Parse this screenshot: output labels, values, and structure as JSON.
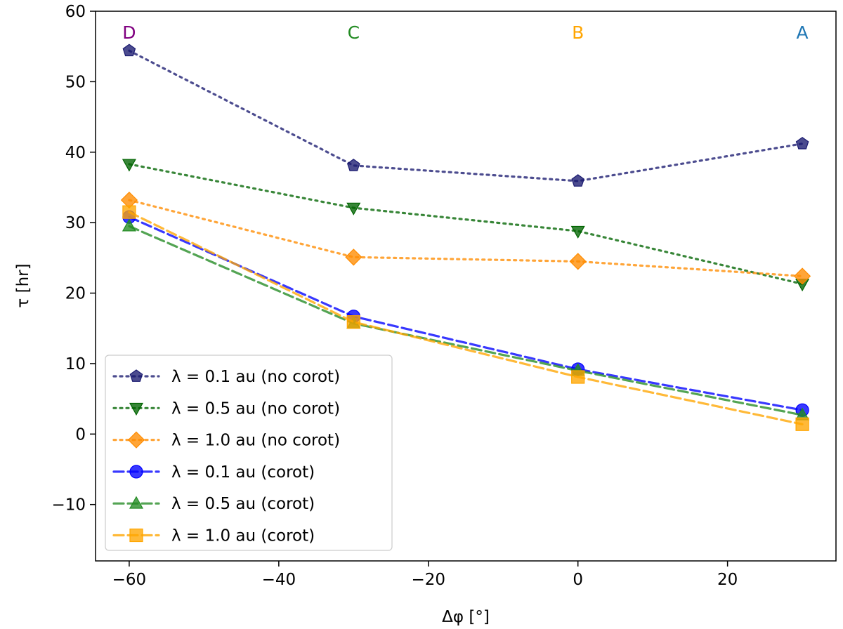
{
  "chart_data": {
    "type": "line",
    "xlabel": "Δφ [°]",
    "ylabel": "τ [hr]",
    "xlim": [
      -64.5,
      34.5
    ],
    "ylim": [
      -18,
      60
    ],
    "xticks": [
      -60,
      -40,
      -20,
      0,
      20
    ],
    "yticks": [
      -10,
      0,
      10,
      20,
      30,
      40,
      50,
      60
    ],
    "xtick_labels": [
      "−60",
      "−40",
      "−20",
      "0",
      "20"
    ],
    "ytick_labels": [
      "−10",
      "0",
      "10",
      "20",
      "30",
      "40",
      "50",
      "60"
    ],
    "x": [
      -60,
      -30,
      0,
      30
    ],
    "point_labels": [
      {
        "text": "D",
        "x": -60,
        "color": "#800080"
      },
      {
        "text": "C",
        "x": -30,
        "color": "#228B22"
      },
      {
        "text": "B",
        "x": 0,
        "color": "#FFA500"
      },
      {
        "text": "A",
        "x": 30,
        "color": "#1f77b4"
      }
    ],
    "legend_position": "lower-left",
    "series": [
      {
        "name": "λ = 0.1 au (no corot)",
        "values": [
          54.4,
          38.1,
          35.9,
          41.2
        ],
        "color": "#191970",
        "linestyle": "dotted",
        "marker": "pentagon"
      },
      {
        "name": "λ = 0.5 au (no corot)",
        "values": [
          38.3,
          32.1,
          28.8,
          21.3
        ],
        "color": "#006400",
        "linestyle": "dotted",
        "marker": "triangle-down"
      },
      {
        "name": "λ = 1.0 au (no corot)",
        "values": [
          33.2,
          25.1,
          24.5,
          22.4
        ],
        "color": "#FF8C00",
        "linestyle": "dotted",
        "marker": "diamond"
      },
      {
        "name": "λ = 0.1 au (corot)",
        "values": [
          30.8,
          16.7,
          9.2,
          3.4
        ],
        "color": "#0000FF",
        "linestyle": "dashed",
        "marker": "circle"
      },
      {
        "name": "λ = 0.5 au (corot)",
        "values": [
          29.5,
          15.7,
          9.0,
          2.7
        ],
        "color": "#228B22",
        "linestyle": "dashed",
        "marker": "triangle-up"
      },
      {
        "name": "λ = 1.0 au (corot)",
        "values": [
          31.5,
          15.9,
          8.1,
          1.4
        ],
        "color": "#FFA500",
        "linestyle": "dashed",
        "marker": "square"
      }
    ]
  }
}
